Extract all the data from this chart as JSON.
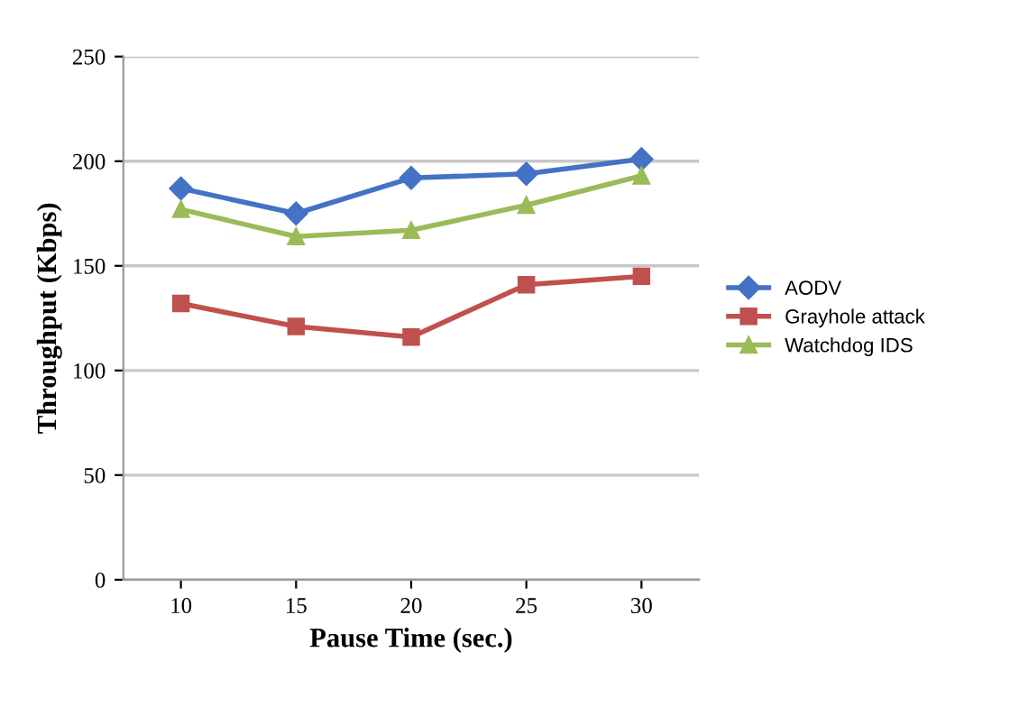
{
  "chart_data": {
    "type": "line",
    "xlabel": "Pause Time (sec.)",
    "ylabel": "Throughput (Kbps)",
    "categories": [
      "10",
      "15",
      "20",
      "25",
      "30"
    ],
    "series": [
      {
        "name": "AODV",
        "color": "#4472c4",
        "marker": "diamond",
        "values": [
          187,
          175,
          192,
          194,
          201
        ]
      },
      {
        "name": "Grayhole attack",
        "color": "#c0504d",
        "marker": "square",
        "values": [
          132,
          121,
          116,
          141,
          145
        ]
      },
      {
        "name": "Watchdog IDS",
        "color": "#9bbb59",
        "marker": "triangle",
        "values": [
          177,
          164,
          167,
          179,
          193
        ]
      }
    ],
    "ylim": [
      0,
      250
    ],
    "yticks": [
      0,
      50,
      100,
      150,
      200,
      250
    ],
    "grid": "y",
    "legend": "right"
  }
}
